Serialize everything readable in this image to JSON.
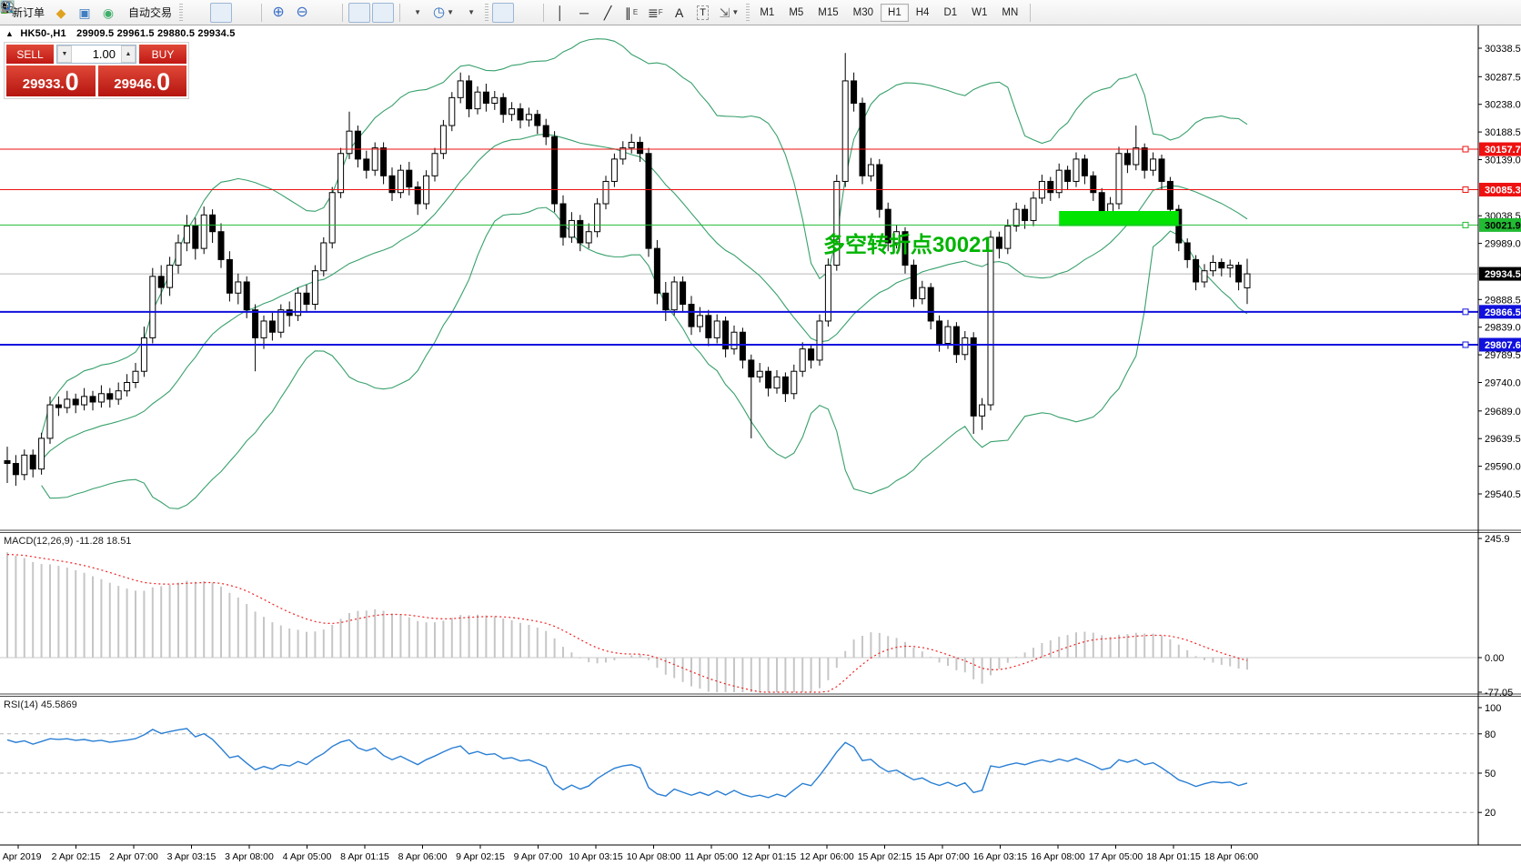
{
  "toolbar": {
    "new_order_label": "新订单",
    "auto_trading_label": "自动交易",
    "timeframes": [
      "M1",
      "M5",
      "M15",
      "M30",
      "H1",
      "H4",
      "D1",
      "W1",
      "MN"
    ],
    "active_timeframe": "H1",
    "text_tool_label": "A",
    "label_tool_label": "T"
  },
  "chart": {
    "title_marker": "▲",
    "symbol_period": "HK50-,H1",
    "ohlc_text": "29909.5 29961.5 29880.5 29934.5"
  },
  "trade": {
    "sell_label": "SELL",
    "buy_label": "BUY",
    "volume": "1.00",
    "sell_main": "29933.",
    "sell_big": "0",
    "buy_main": "29946.",
    "buy_big": "0"
  },
  "annotation": {
    "text": "多空转折点30021",
    "color": "#00b400"
  },
  "zone_rect": {
    "from_index": 123,
    "to_index": 137,
    "top_price": 30047,
    "bottom_price": 30020,
    "color": "#00e400"
  },
  "levels": [
    {
      "price": 30157.7,
      "label": "30157.7",
      "color": "#ee1111",
      "width": 1
    },
    {
      "price": 30085.3,
      "label": "30085.3",
      "color": "#ee1111",
      "width": 1
    },
    {
      "price": 30021.9,
      "label": "30021.9",
      "color": "#22bb33",
      "width": 1
    },
    {
      "price": 29866.5,
      "label": "29866.5",
      "color": "#1111dd",
      "width": 2
    },
    {
      "price": 29807.6,
      "label": "29807.6",
      "color": "#1111dd",
      "width": 2
    }
  ],
  "current_price": {
    "value": "29934.5",
    "price": 29934.5,
    "badge_bg": "#000000",
    "line_color": "#b8b8b8"
  },
  "price_axis": {
    "ticks": [
      30338.5,
      30287.5,
      30238.0,
      30188.5,
      30139.0,
      30038.5,
      29989.0,
      29888.5,
      29839.0,
      29789.5,
      29740.0,
      29689.0,
      29639.5,
      29590.0,
      29540.5
    ]
  },
  "macd_panel": {
    "label": "MACD(12,26,9) -11.28 18.51",
    "axis": [
      {
        "v": 245.9,
        "t": "245.9"
      },
      {
        "v": 0,
        "t": "0.00"
      },
      {
        "v": -77.05,
        "t": "-77.05"
      }
    ],
    "hist_color": "#c6c6c6",
    "signal_color": "#ee2222"
  },
  "rsi_panel": {
    "label": "RSI(14) 45.5869",
    "axis": [
      {
        "v": 100,
        "t": "100"
      },
      {
        "v": 80,
        "t": "80"
      },
      {
        "v": 50,
        "t": "50"
      },
      {
        "v": 20,
        "t": "20"
      }
    ],
    "level_lines": [
      80,
      50,
      20
    ],
    "line_color": "#2a7fd4"
  },
  "time_axis": {
    "labels": [
      "1 Apr 2019",
      "2 Apr 02:15",
      "2 Apr 07:00",
      "3 Apr 03:15",
      "3 Apr 08:00",
      "4 Apr 05:00",
      "8 Apr 01:15",
      "8 Apr 06:00",
      "9 Apr 02:15",
      "9 Apr 07:00",
      "10 Apr 03:15",
      "10 Apr 08:00",
      "11 Apr 05:00",
      "12 Apr 01:15",
      "12 Apr 06:00",
      "15 Apr 02:15",
      "15 Apr 07:00",
      "16 Apr 03:15",
      "16 Apr 08:00",
      "17 Apr 05:00",
      "18 Apr 01:15",
      "18 Apr 06:00"
    ]
  },
  "chart_data": {
    "type": "candlestick",
    "symbol": "HK50-",
    "timeframe": "H1",
    "title": "HK50-,H1 29909.5 29961.5 29880.5 29934.5",
    "ylim": [
      29540.5,
      30338.5
    ],
    "indicators": {
      "bollinger": {
        "period": 20,
        "deviation": 2,
        "color": "#38a06c"
      },
      "macd": {
        "fast": 12,
        "slow": 26,
        "signal": 9,
        "current_main": -11.28,
        "current_signal": 18.51,
        "range": [
          -77.05,
          245.9
        ]
      },
      "rsi": {
        "period": 14,
        "current": 45.5869,
        "range": [
          0,
          100
        ]
      }
    },
    "ohlc": [
      [
        29600,
        29625,
        29560,
        29595
      ],
      [
        29595,
        29610,
        29555,
        29575
      ],
      [
        29575,
        29620,
        29565,
        29610
      ],
      [
        29610,
        29620,
        29570,
        29585
      ],
      [
        29585,
        29650,
        29575,
        29640
      ],
      [
        29640,
        29715,
        29630,
        29700
      ],
      [
        29700,
        29715,
        29680,
        29695
      ],
      [
        29695,
        29725,
        29685,
        29710
      ],
      [
        29710,
        29720,
        29685,
        29700
      ],
      [
        29700,
        29730,
        29690,
        29715
      ],
      [
        29715,
        29725,
        29690,
        29705
      ],
      [
        29705,
        29735,
        29695,
        29720
      ],
      [
        29720,
        29730,
        29695,
        29710
      ],
      [
        29710,
        29740,
        29700,
        29725
      ],
      [
        29725,
        29755,
        29715,
        29740
      ],
      [
        29740,
        29775,
        29730,
        29760
      ],
      [
        29760,
        29840,
        29750,
        29820
      ],
      [
        29820,
        29945,
        29810,
        29930
      ],
      [
        29930,
        29950,
        29880,
        29910
      ],
      [
        29910,
        29965,
        29895,
        29950
      ],
      [
        29950,
        30005,
        29935,
        29990
      ],
      [
        29990,
        30040,
        29975,
        30020
      ],
      [
        30020,
        30035,
        29960,
        29980
      ],
      [
        29980,
        30055,
        29970,
        30040
      ],
      [
        30040,
        30050,
        29990,
        30010
      ],
      [
        30010,
        30025,
        29945,
        29960
      ],
      [
        29960,
        29975,
        29885,
        29900
      ],
      [
        29900,
        29935,
        29880,
        29920
      ],
      [
        29920,
        29930,
        29855,
        29870
      ],
      [
        29870,
        29880,
        29760,
        29820
      ],
      [
        29820,
        29860,
        29800,
        29850
      ],
      [
        29850,
        29865,
        29815,
        29830
      ],
      [
        29830,
        29880,
        29820,
        29870
      ],
      [
        29870,
        29885,
        29840,
        29860
      ],
      [
        29860,
        29910,
        29850,
        29900
      ],
      [
        29900,
        29915,
        29865,
        29880
      ],
      [
        29880,
        29950,
        29870,
        29940
      ],
      [
        29940,
        30000,
        29930,
        29990
      ],
      [
        29990,
        30090,
        29980,
        30080
      ],
      [
        30080,
        30160,
        30070,
        30150
      ],
      [
        30150,
        30225,
        30140,
        30190
      ],
      [
        30190,
        30200,
        30125,
        30140
      ],
      [
        30140,
        30155,
        30105,
        30120
      ],
      [
        30120,
        30170,
        30110,
        30160
      ],
      [
        30160,
        30170,
        30095,
        30110
      ],
      [
        30110,
        30125,
        30065,
        30080
      ],
      [
        30080,
        30130,
        30070,
        30120
      ],
      [
        30120,
        30135,
        30075,
        30090
      ],
      [
        30090,
        30100,
        30040,
        30060
      ],
      [
        30060,
        30120,
        30050,
        30110
      ],
      [
        30110,
        30160,
        30100,
        30150
      ],
      [
        30150,
        30210,
        30140,
        30200
      ],
      [
        30200,
        30260,
        30190,
        30250
      ],
      [
        30250,
        30295,
        30240,
        30280
      ],
      [
        30280,
        30290,
        30215,
        30230
      ],
      [
        30230,
        30270,
        30220,
        30260
      ],
      [
        30260,
        30275,
        30225,
        30240
      ],
      [
        30240,
        30262,
        30228,
        30250
      ],
      [
        30250,
        30258,
        30205,
        30220
      ],
      [
        30220,
        30242,
        30208,
        30230
      ],
      [
        30230,
        30240,
        30195,
        30210
      ],
      [
        30210,
        30232,
        30198,
        30220
      ],
      [
        30220,
        30228,
        30185,
        30200
      ],
      [
        30200,
        30212,
        30165,
        30180
      ],
      [
        30180,
        30190,
        30045,
        30060
      ],
      [
        30060,
        30075,
        29985,
        30000
      ],
      [
        30000,
        30045,
        29990,
        30030
      ],
      [
        30030,
        30040,
        29975,
        29990
      ],
      [
        29990,
        30025,
        29980,
        30010
      ],
      [
        30010,
        30070,
        30000,
        30060
      ],
      [
        30060,
        30110,
        30050,
        30100
      ],
      [
        30100,
        30150,
        30090,
        30140
      ],
      [
        30140,
        30172,
        30130,
        30160
      ],
      [
        30160,
        30185,
        30150,
        30170
      ],
      [
        30170,
        30180,
        30135,
        30150
      ],
      [
        30150,
        30160,
        29965,
        29980
      ],
      [
        29980,
        29995,
        29880,
        29900
      ],
      [
        29900,
        29920,
        29850,
        29870
      ],
      [
        29870,
        29930,
        29860,
        29920
      ],
      [
        29920,
        29930,
        29865,
        29880
      ],
      [
        29880,
        29895,
        29825,
        29840
      ],
      [
        29840,
        29875,
        29830,
        29860
      ],
      [
        29860,
        29870,
        29805,
        29820
      ],
      [
        29820,
        29862,
        29810,
        29850
      ],
      [
        29850,
        29858,
        29785,
        29800
      ],
      [
        29800,
        29842,
        29790,
        29830
      ],
      [
        29830,
        29838,
        29765,
        29780
      ],
      [
        29780,
        29790,
        29640,
        29750
      ],
      [
        29750,
        29775,
        29740,
        29760
      ],
      [
        29760,
        29768,
        29715,
        29730
      ],
      [
        29730,
        29762,
        29720,
        29750
      ],
      [
        29750,
        29758,
        29705,
        29720
      ],
      [
        29720,
        29772,
        29710,
        29760
      ],
      [
        29760,
        29812,
        29750,
        29800
      ],
      [
        29800,
        29808,
        29765,
        29780
      ],
      [
        29780,
        29862,
        29770,
        29850
      ],
      [
        29850,
        29962,
        29840,
        29950
      ],
      [
        29950,
        30112,
        29940,
        30100
      ],
      [
        30100,
        30330,
        30090,
        30280
      ],
      [
        30280,
        30295,
        30225,
        30240
      ],
      [
        30240,
        30250,
        30095,
        30110
      ],
      [
        30110,
        30142,
        30100,
        30130
      ],
      [
        30130,
        30140,
        30035,
        30050
      ],
      [
        30050,
        30062,
        29975,
        29990
      ],
      [
        29990,
        30022,
        29980,
        30010
      ],
      [
        30010,
        30018,
        29935,
        29950
      ],
      [
        29950,
        29960,
        29875,
        29890
      ],
      [
        29890,
        29922,
        29880,
        29910
      ],
      [
        29910,
        29918,
        29835,
        29850
      ],
      [
        29850,
        29860,
        29795,
        29810
      ],
      [
        29810,
        29852,
        29800,
        29840
      ],
      [
        29840,
        29848,
        29775,
        29790
      ],
      [
        29790,
        29832,
        29780,
        29820
      ],
      [
        29820,
        29830,
        29648,
        29680
      ],
      [
        29680,
        29712,
        29655,
        29700
      ],
      [
        29700,
        30012,
        29690,
        30000
      ],
      [
        30000,
        30010,
        29962,
        29980
      ],
      [
        29980,
        30032,
        29970,
        30020
      ],
      [
        30020,
        30062,
        30010,
        30050
      ],
      [
        30050,
        30058,
        30015,
        30030
      ],
      [
        30030,
        30082,
        30020,
        30070
      ],
      [
        30070,
        30112,
        30060,
        30100
      ],
      [
        30100,
        30108,
        30065,
        30080
      ],
      [
        30080,
        30132,
        30070,
        30120
      ],
      [
        30120,
        30128,
        30085,
        30100
      ],
      [
        30100,
        30152,
        30090,
        30140
      ],
      [
        30140,
        30148,
        30095,
        30110
      ],
      [
        30110,
        30118,
        30065,
        30080
      ],
      [
        30080,
        30088,
        30025,
        30040
      ],
      [
        30040,
        30072,
        30030,
        30060
      ],
      [
        30060,
        30162,
        30050,
        30150
      ],
      [
        30150,
        30158,
        30115,
        30130
      ],
      [
        30130,
        30200,
        30120,
        30160
      ],
      [
        30160,
        30168,
        30105,
        30120
      ],
      [
        30120,
        30152,
        30110,
        30140
      ],
      [
        30140,
        30148,
        30085,
        30100
      ],
      [
        30100,
        30108,
        30035,
        30050
      ],
      [
        30050,
        30058,
        29975,
        29990
      ],
      [
        29990,
        29998,
        29945,
        29960
      ],
      [
        29960,
        29968,
        29905,
        29920
      ],
      [
        29920,
        29952,
        29910,
        29940
      ],
      [
        29940,
        29968,
        29930,
        29955
      ],
      [
        29955,
        29962,
        29930,
        29945
      ],
      [
        29945,
        29960,
        29928,
        29950
      ],
      [
        29950,
        29956,
        29905,
        29920
      ],
      [
        29909.5,
        29961.5,
        29880.5,
        29934.5
      ]
    ]
  }
}
